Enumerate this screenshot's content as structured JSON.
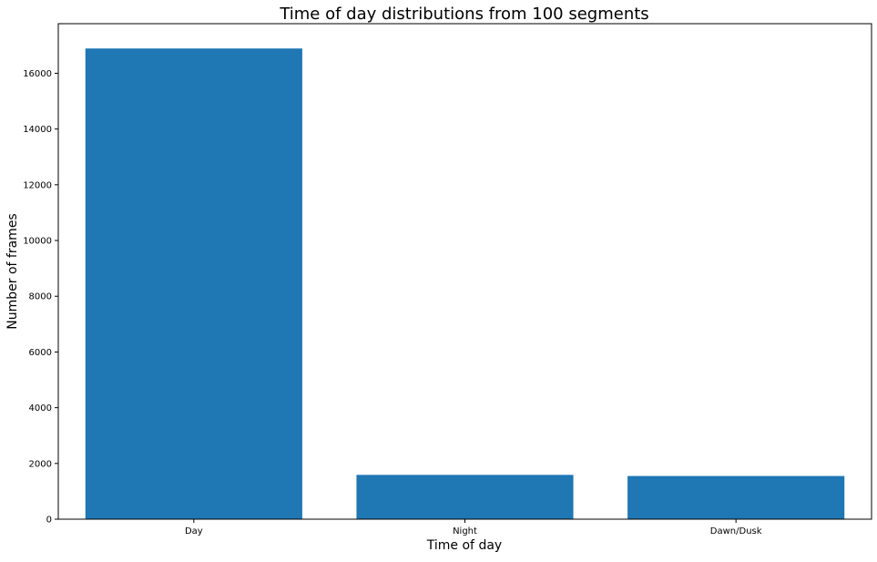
{
  "chart_data": {
    "type": "bar",
    "title": "Time of day distributions from 100 segments",
    "xlabel": "Time of day",
    "ylabel": "Number of frames",
    "categories": [
      "Day",
      "Night",
      "Dawn/Dusk"
    ],
    "values": [
      16890,
      1590,
      1550
    ],
    "ylim": [
      0,
      17780
    ],
    "yticks": [
      0,
      2000,
      4000,
      6000,
      8000,
      10000,
      12000,
      14000,
      16000
    ],
    "ytick_labels": [
      "0",
      "2000",
      "4000",
      "6000",
      "8000",
      "10000",
      "12000",
      "14000",
      "16000"
    ],
    "grid": false,
    "legend": "none",
    "colors": {
      "bar": "#1f77b4",
      "axis": "#000000",
      "background": "#ffffff"
    }
  }
}
